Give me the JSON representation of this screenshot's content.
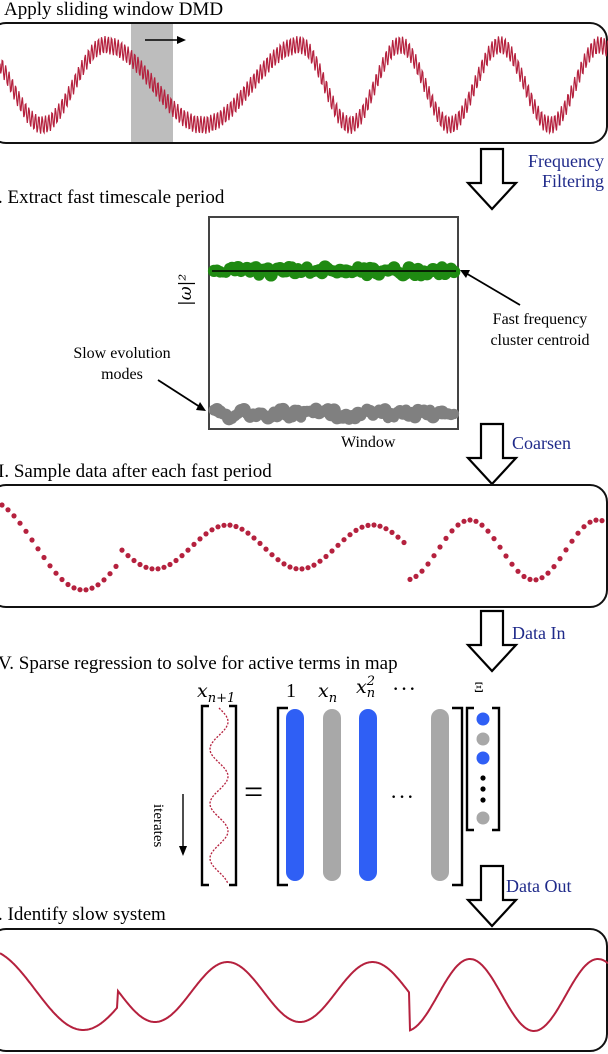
{
  "steps": {
    "s1": {
      "title": "Apply sliding window DMD"
    },
    "s2": {
      "title": ". Extract fast timescale period"
    },
    "s3": {
      "title": "I. Sample data after each fast period"
    },
    "s4": {
      "title": "V. Sparse regression to solve for active terms in map"
    },
    "s5": {
      "title": ". Identify slow system"
    }
  },
  "flow": {
    "f1_line1": "Frequency",
    "f1_line2": "Filtering",
    "f2": "Coarsen",
    "f3": "Data In",
    "f4": "Data Out"
  },
  "panel2": {
    "ylabel": "|ω|²",
    "xlabel": "Window",
    "fast_anno_l1": "Fast frequency",
    "fast_anno_l2": "cluster centroid",
    "slow_anno_l1": "Slow evolution",
    "slow_anno_l2": "modes"
  },
  "regression": {
    "lhs_label": "x",
    "lhs_sub": "n+1",
    "iterates": "iterates",
    "equals": "=",
    "col1": "1",
    "col2_base": "x",
    "col2_sub": "n",
    "col3_base": "x",
    "col3_sub": "n",
    "col3_sup": "2",
    "col_ellipsis": "···",
    "mid_ellipsis": "···",
    "xi": "Ξ"
  },
  "colors": {
    "signal": "#b5213e",
    "fast_cluster": "#1f8a12",
    "slow_cluster": "#808080",
    "active_term": "#2f5ff5",
    "inactive_term": "#a8a8a8",
    "flow_text": "#1f2a8a",
    "window_shade": "#bdbdbd"
  }
}
